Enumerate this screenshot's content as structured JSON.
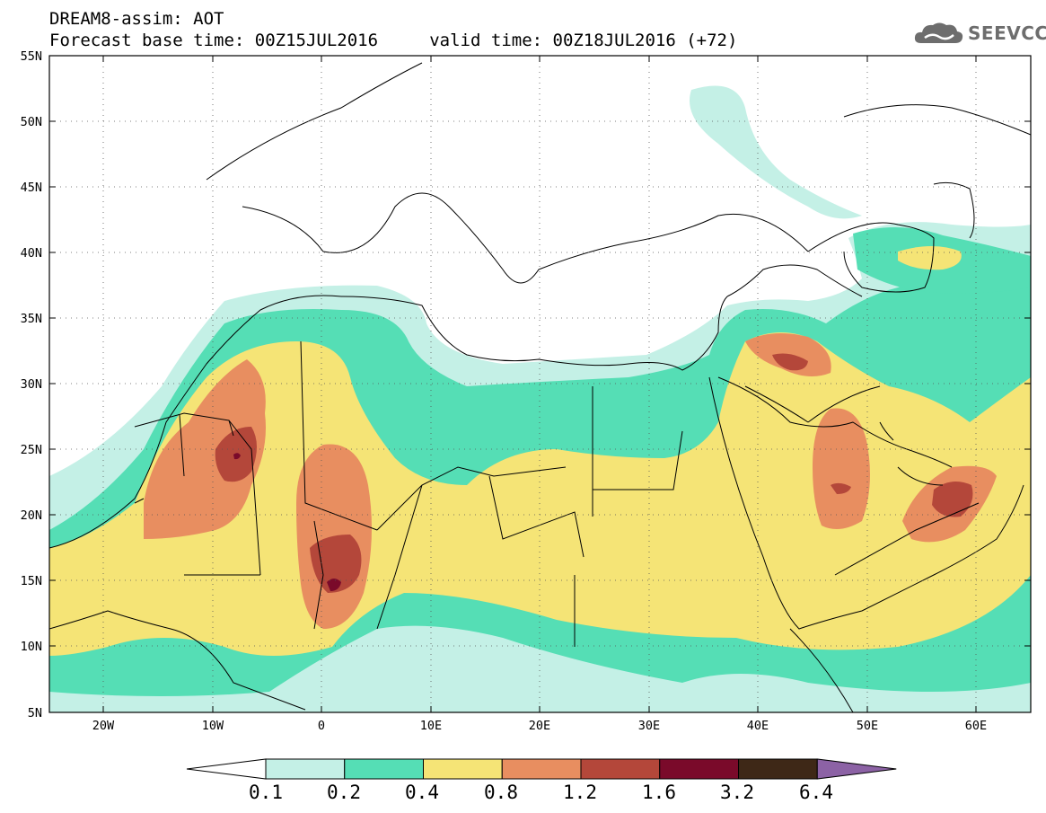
{
  "header": {
    "title_line1": "DREAM8-assim: AOT",
    "title_line2": "Forecast base time: 00Z15JUL2016     valid time: 00Z18JUL2016 (+72)",
    "logo_text": "SEEVCCC"
  },
  "map": {
    "lon_range": [
      -25,
      65
    ],
    "lat_range": [
      5,
      55
    ],
    "lat_labels": [
      "55N",
      "50N",
      "45N",
      "40N",
      "35N",
      "30N",
      "25N",
      "20N",
      "15N",
      "10N",
      "5N"
    ],
    "lon_labels": [
      "20W",
      "10W",
      "0",
      "10E",
      "20E",
      "30E",
      "40E",
      "50E",
      "60E"
    ],
    "gridlines": "dotted"
  },
  "legend": {
    "labels": [
      "0.1",
      "0.2",
      "0.4",
      "0.8",
      "1.2",
      "1.6",
      "3.2",
      "6.4"
    ],
    "colors": [
      "#ffffff",
      "#c4f0e6",
      "#55deb5",
      "#f5e476",
      "#e88e60",
      "#b4473a",
      "#7a0a2a",
      "#3e2817",
      "#8c62a5"
    ]
  }
}
